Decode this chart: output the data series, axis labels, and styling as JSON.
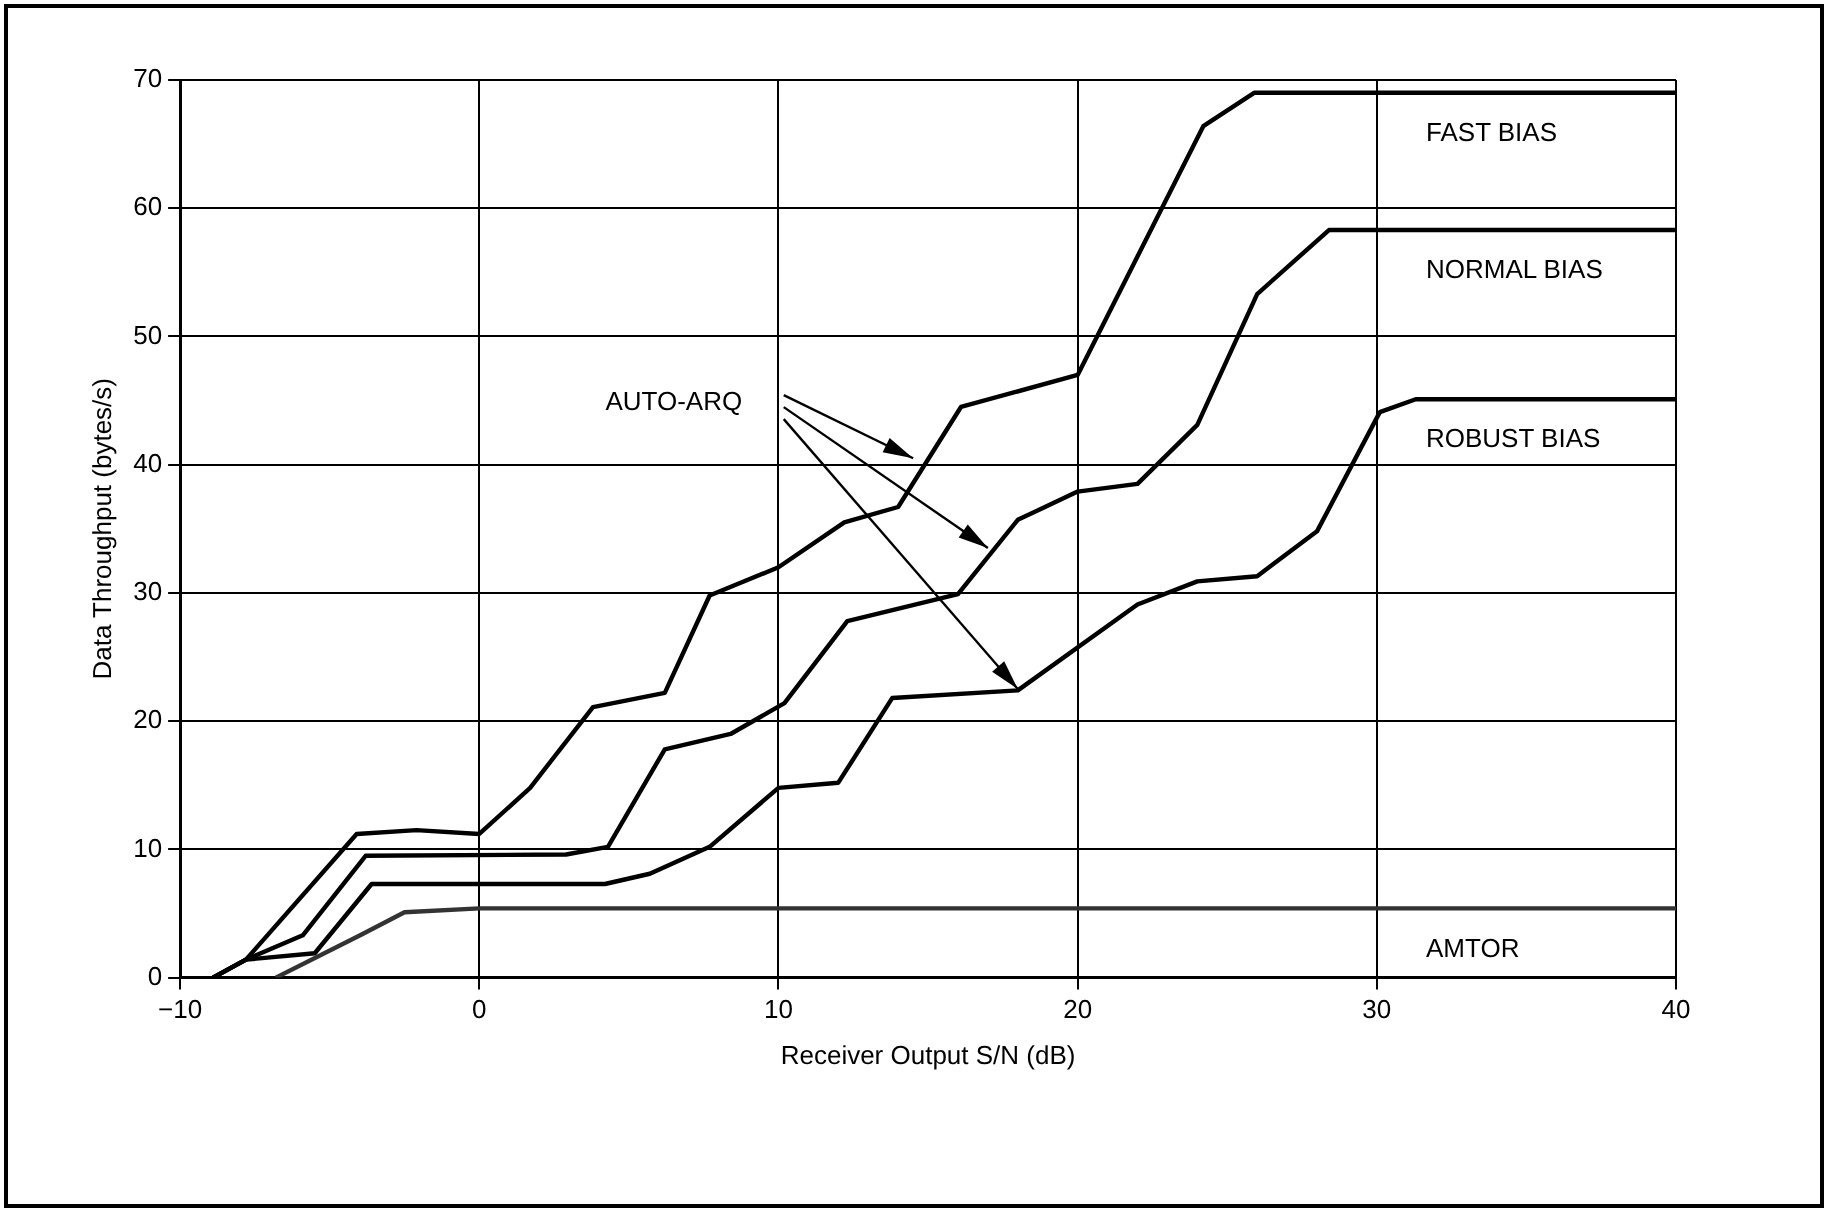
{
  "chart_data": {
    "type": "line",
    "xlabel": "Receiver Output S/N (dB)",
    "ylabel": "Data Throughput (bytes/s)",
    "xlim": [
      -10,
      40
    ],
    "xticks": [
      -10,
      0,
      10,
      20,
      30,
      40
    ],
    "ylim": [
      0,
      70
    ],
    "yticks": [
      0,
      10,
      20,
      30,
      40,
      50,
      60,
      70
    ],
    "grid": true,
    "legend": false,
    "marker": "none",
    "line_style": "solid",
    "annotations": [
      "AUTO-ARQ"
    ],
    "series": [
      {
        "name": "FAST BIAS",
        "color": "#000000",
        "x": [
          -8.9,
          -7.8,
          -4.1,
          -2.1,
          0,
          1.7,
          3.8,
          6.2,
          7.7,
          10,
          12.2,
          14,
          16.1,
          20,
          24.2,
          25.9,
          40
        ],
        "values": [
          0,
          1.4,
          11.2,
          11.5,
          11.2,
          14.8,
          21.1,
          22.2,
          29.8,
          32,
          35.5,
          36.7,
          44.5,
          47,
          66.4,
          69,
          69
        ]
      },
      {
        "name": "NORMAL BIAS",
        "color": "#000000",
        "x": [
          -8.9,
          -7.8,
          -5.9,
          -3.8,
          2.9,
          4.3,
          6.2,
          8.4,
          10.2,
          12.3,
          16,
          18,
          20,
          22,
          24,
          26,
          28.4,
          40
        ],
        "values": [
          0,
          1.4,
          3.3,
          9.5,
          9.6,
          10.2,
          17.8,
          19,
          21.4,
          27.8,
          29.9,
          35.7,
          37.9,
          38.5,
          43.1,
          53.3,
          58.3,
          58.3
        ]
      },
      {
        "name": "ROBUST BIAS",
        "color": "#000000",
        "x": [
          -8.9,
          -7.8,
          -5.5,
          -3.6,
          4.2,
          5.7,
          7.7,
          10,
          12,
          13.8,
          18,
          22,
          24,
          26,
          28,
          30.1,
          31.3,
          40
        ],
        "values": [
          0,
          1.4,
          1.9,
          7.3,
          7.3,
          8.1,
          10.2,
          14.8,
          15.2,
          21.8,
          22.4,
          29.1,
          30.9,
          31.3,
          34.8,
          44.1,
          45.1,
          45.1
        ]
      },
      {
        "name": "AMTOR",
        "color": "#333333",
        "x": [
          -6.8,
          -3.9,
          -2.5,
          0,
          40
        ],
        "values": [
          0,
          3.4,
          5.1,
          5.4,
          5.4
        ]
      }
    ]
  }
}
